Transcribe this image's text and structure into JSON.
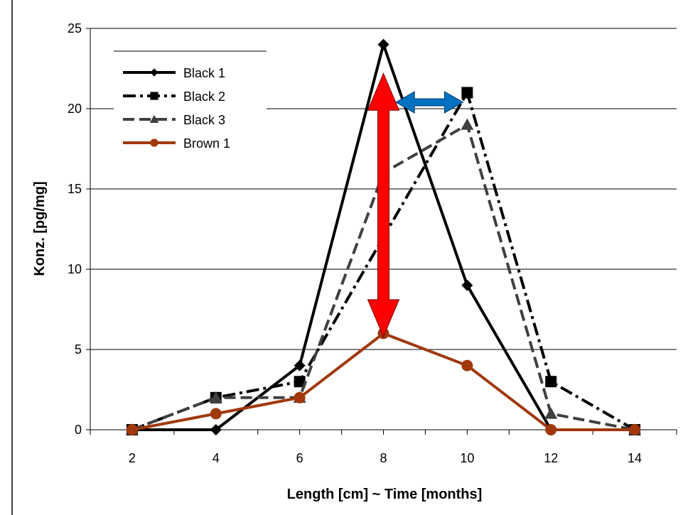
{
  "chart_data": {
    "type": "line",
    "title": "",
    "xlabel": "Length [cm] ~ Time [months]",
    "ylabel": "Konz. [pg/mg]",
    "x": [
      2,
      4,
      6,
      8,
      10,
      12,
      14
    ],
    "xticks": [
      "2",
      "4",
      "6",
      "8",
      "10",
      "12",
      "14"
    ],
    "yticks": [
      "0",
      "5",
      "10",
      "15",
      "20",
      "25"
    ],
    "xlim": [
      1,
      15
    ],
    "ylim": [
      0,
      25
    ],
    "grid": "horizontal",
    "legend_position": "top-left",
    "series": [
      {
        "name": "Black 1",
        "values": [
          0,
          0,
          4,
          24,
          9,
          0,
          0
        ],
        "color": "#000000",
        "marker": "diamond",
        "dash": "solid"
      },
      {
        "name": "Black 2",
        "values": [
          0,
          2,
          3,
          12,
          21,
          3,
          0
        ],
        "color": "#000000",
        "marker": "square",
        "dash": "longdash-dot"
      },
      {
        "name": "Black 3",
        "values": [
          0,
          2,
          2,
          16,
          19,
          1,
          0
        ],
        "color": "#404040",
        "marker": "triangle",
        "dash": "dash"
      },
      {
        "name": "Brown 1",
        "values": [
          0,
          1,
          2,
          6,
          4,
          0,
          0
        ],
        "color": "#a0380c",
        "marker": "circle",
        "dash": "solid"
      }
    ],
    "annotations": [
      {
        "type": "double-arrow-vertical",
        "x": 8,
        "y_from": 22.2,
        "y_to": 5.8,
        "color": "#ff0000"
      },
      {
        "type": "double-arrow-horizontal",
        "y": 20.4,
        "x_from": 8.3,
        "x_to": 9.9,
        "color": "#0070c0"
      }
    ]
  }
}
